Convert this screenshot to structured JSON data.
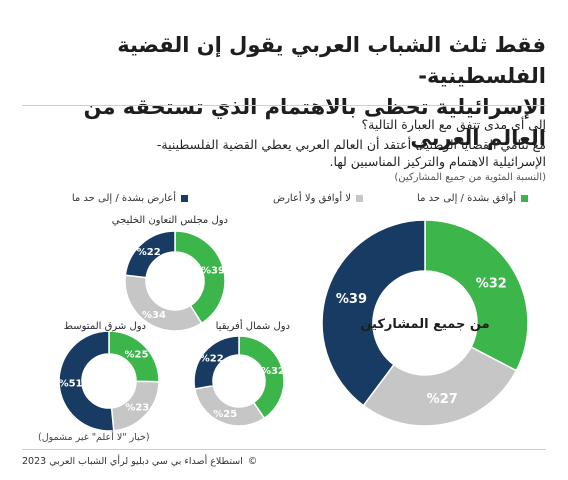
{
  "header": {
    "title_line1": "فقط ثلث الشباب العربي يقول إن القضية الفلسطينية-",
    "title_line2": "الإسرائيلية تحظى بالاهتمام الذي تستحقه من العالم العربي"
  },
  "question": "إلى أي مدى تتفق مع العبارة التالية؟",
  "statement_line1": "مع تنامي القضايا الوطنية، أعتقد أن العالم العربي يعطي القضية الفلسطينية-",
  "statement_line2": "الإسرائيلية الاهتمام والتركيز المناسبين لها.",
  "note": "(النسبة المئوية من جميع المشاركين)",
  "footnote": "(خيار \"لا أعلم\" غير مشمول)",
  "source": "استطلاع أصداء بي سي دبليو لرأي الشباب العربي 2023",
  "source_symbol": "©",
  "legend": [
    {
      "key": "agree",
      "label": "أوافق بشدة / إلى حد ما",
      "color": "#3cb54a"
    },
    {
      "key": "neutral",
      "label": "لا أوافق ولا أعارض",
      "color": "#c6c6c6"
    },
    {
      "key": "disagree",
      "label": "أعارض بشدة / إلى حد ما",
      "color": "#183b63"
    }
  ],
  "chart_data": [
    {
      "type": "pie",
      "title": "من جميع المشاركين",
      "labels": [
        "أوافق بشدة / إلى حد ما",
        "لا أوافق ولا أعارض",
        "أعارض بشدة / إلى حد ما"
      ],
      "values": [
        32,
        27,
        39
      ]
    },
    {
      "type": "pie",
      "title": "دول مجلس التعاون الخليجي",
      "labels": [
        "أوافق بشدة / إلى حد ما",
        "لا أوافق ولا أعارض",
        "أعارض بشدة / إلى حد ما"
      ],
      "values": [
        39,
        34,
        22
      ]
    },
    {
      "type": "pie",
      "title": "دول شمال أفريقيا",
      "labels": [
        "أوافق بشدة / إلى حد ما",
        "لا أوافق ولا أعارض",
        "أعارض بشدة / إلى حد ما"
      ],
      "values": [
        32,
        25,
        22
      ]
    },
    {
      "type": "pie",
      "title": "دول شرق المتوسط",
      "labels": [
        "أوافق بشدة / إلى حد ما",
        "لا أوافق ولا أعارض",
        "أعارض بشدة / إلى حد ما"
      ],
      "values": [
        25,
        23,
        51
      ]
    }
  ]
}
